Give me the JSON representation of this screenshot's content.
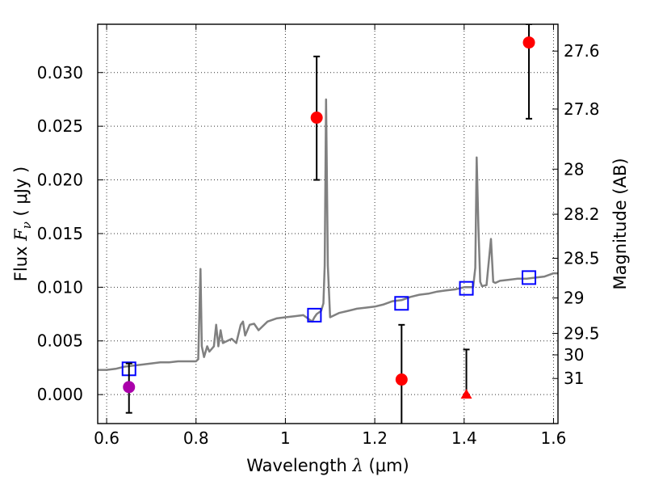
{
  "chart_data": {
    "type": "scatter",
    "xlabel_prefix": "Wavelength",
    "xlabel_symbol": "λ",
    "xlabel_unit": "(μm)",
    "ylabel_prefix": "Flux",
    "ylabel_symbol": "F",
    "ylabel_subscript": "ν",
    "ylabel_unit": "( μJy )",
    "y2label": "Magnitude (AB)",
    "xlim": [
      0.58,
      1.61
    ],
    "ylim": [
      -0.0027,
      0.0345
    ],
    "grid": true,
    "x_ticks": [
      0.6,
      0.8,
      1.0,
      1.2,
      1.4,
      1.6
    ],
    "x_tick_labels": [
      "0.6",
      "0.8",
      "1",
      "1.2",
      "1.4",
      "1.6"
    ],
    "y_ticks": [
      0.0,
      0.005,
      0.01,
      0.015,
      0.02,
      0.025,
      0.03
    ],
    "y_tick_labels": [
      "0.000",
      "0.005",
      "0.010",
      "0.015",
      "0.020",
      "0.025",
      "0.030"
    ],
    "y2_tick_flux": [
      0.032,
      0.0266,
      0.021,
      0.0168,
      0.0127,
      0.009,
      0.0057,
      0.0037,
      0.0015
    ],
    "y2_tick_labels": [
      "27.6",
      "27.8",
      "28",
      "28.2",
      "28.5",
      "29",
      "29.5",
      "30",
      "31"
    ],
    "colors": {
      "model": "#808080",
      "observed": "#ff0000",
      "reference": "#aa00aa",
      "synthetic": "#0000ff",
      "errorbar": "#000000"
    },
    "series": [
      {
        "type": "line",
        "x": [
          0.58,
          0.6,
          0.62,
          0.64,
          0.66,
          0.68,
          0.7,
          0.72,
          0.74,
          0.76,
          0.78,
          0.8,
          0.805,
          0.81,
          0.813,
          0.818,
          0.825,
          0.83,
          0.84,
          0.845,
          0.85,
          0.855,
          0.86,
          0.87,
          0.88,
          0.89,
          0.9,
          0.905,
          0.91,
          0.92,
          0.93,
          0.94,
          0.96,
          0.98,
          1.0,
          1.02,
          1.04,
          1.06,
          1.065,
          1.07,
          1.08,
          1.085,
          1.088,
          1.091,
          1.095,
          1.1,
          1.12,
          1.14,
          1.16,
          1.18,
          1.2,
          1.22,
          1.24,
          1.26,
          1.28,
          1.3,
          1.32,
          1.34,
          1.36,
          1.38,
          1.4,
          1.42,
          1.425,
          1.428,
          1.432,
          1.436,
          1.44,
          1.45,
          1.46,
          1.465,
          1.47,
          1.48,
          1.5,
          1.52,
          1.54,
          1.56,
          1.58,
          1.6,
          1.61
        ],
        "y": [
          0.0023,
          0.0023,
          0.0024,
          0.0026,
          0.0027,
          0.0028,
          0.0029,
          0.003,
          0.003,
          0.0031,
          0.0031,
          0.0031,
          0.0033,
          0.0117,
          0.0045,
          0.0035,
          0.0045,
          0.004,
          0.0045,
          0.0065,
          0.0045,
          0.006,
          0.0048,
          0.005,
          0.0052,
          0.0048,
          0.0065,
          0.0068,
          0.0055,
          0.0065,
          0.0066,
          0.006,
          0.0068,
          0.0071,
          0.0072,
          0.0073,
          0.0074,
          0.0068,
          0.0072,
          0.0075,
          0.0078,
          0.0085,
          0.012,
          0.0275,
          0.012,
          0.0072,
          0.0076,
          0.0078,
          0.008,
          0.0081,
          0.0082,
          0.0084,
          0.0087,
          0.0088,
          0.0091,
          0.0093,
          0.0094,
          0.0096,
          0.0097,
          0.0098,
          0.01,
          0.01,
          0.0118,
          0.0221,
          0.0155,
          0.0105,
          0.0101,
          0.0102,
          0.0145,
          0.0105,
          0.0104,
          0.0106,
          0.0107,
          0.0108,
          0.0108,
          0.0109,
          0.011,
          0.0113,
          0.0113
        ]
      },
      {
        "type": "synthetic",
        "marker": "square",
        "x": [
          0.65,
          1.065,
          1.26,
          1.405,
          1.545
        ],
        "y": [
          0.0024,
          0.0074,
          0.0085,
          0.0099,
          0.0109
        ]
      },
      {
        "type": "observed",
        "marker": "circle",
        "x": [
          1.07,
          1.26,
          1.545
        ],
        "y": [
          0.0258,
          0.0014,
          0.0328
        ],
        "yerr_low": [
          0.02,
          -0.003,
          0.0257
        ],
        "yerr_high": [
          0.0315,
          0.0065,
          0.0345
        ]
      },
      {
        "type": "reference",
        "marker": "circle",
        "x": [
          0.65
        ],
        "y": [
          0.0007
        ],
        "yerr_low": [
          -0.0017
        ],
        "yerr_high": [
          0.0029
        ]
      },
      {
        "type": "upper_limit",
        "marker": "triangle",
        "x": [
          1.405
        ],
        "y": [
          0.0
        ],
        "yerr_low": [
          0.0
        ],
        "yerr_high": [
          0.0042
        ]
      }
    ]
  }
}
